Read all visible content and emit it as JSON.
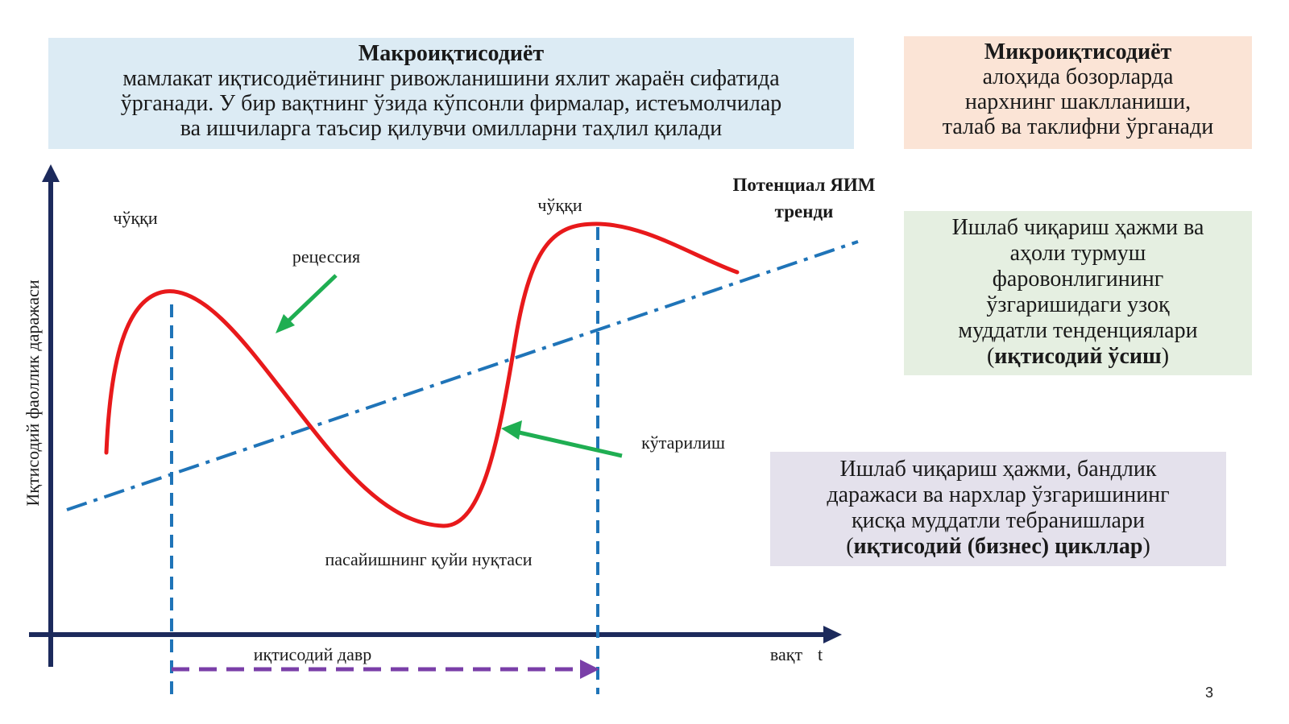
{
  "macro": {
    "title": "Макроиқтисодиёт",
    "lines": [
      "мамлакат иқтисодиётининг ривожланишини яхлит жараён сифатида",
      "ўрганади. У бир вақтнинг ўзида кўпсонли фирмалар, истеъмолчилар",
      "ва ишчиларга таъсир қилувчи омилларни таҳлил қилади"
    ]
  },
  "micro": {
    "title": "Микроиқтисодиёт",
    "lines": [
      "алоҳида бозорларда",
      "нархнинг шаклланиши,",
      "талаб ва таклифни ўрганади"
    ]
  },
  "growth": {
    "lines": [
      "Ишлаб чиқариш ҳажми ва",
      "аҳоли турмуш",
      "фаровонлигининг",
      "ўзгаришидаги узоқ",
      "муддатли тенденциялари"
    ],
    "open": "(",
    "bold": "иқтисодий ўсиш",
    "close": ")"
  },
  "cycle": {
    "lines": [
      "Ишлаб чиқариш ҳажми, бандлик",
      "даражаси ва нархлар ўзгаришининг",
      "қисқа муддатли тебранишлари"
    ],
    "open": "(",
    "bold": "иқтисодий (бизнес) цикллар",
    "close": ")"
  },
  "diagram": {
    "y_axis_label": "Иқтисодий фаоллик даражаси",
    "x_axis_label": "вақт",
    "x_axis_symbol": "t",
    "peak1_label": "чўққи",
    "peak2_label": "чўққи",
    "recession_label": "рецессия",
    "expansion_label": "кўтарилиш",
    "trough_label": "пасайишнинг қуйи нуқтаси",
    "cycle_label": "иқтисодий давр",
    "trend_label_line1": "Потенциал ЯИМ",
    "trend_label_line2": "тренди",
    "colors": {
      "axis": "#1c2a5c",
      "curve": "#e8191b",
      "trend": "#1f74b8",
      "arrow": "#1fae52",
      "cycle_arrow": "#7a3fa8"
    }
  },
  "page_number": "3"
}
